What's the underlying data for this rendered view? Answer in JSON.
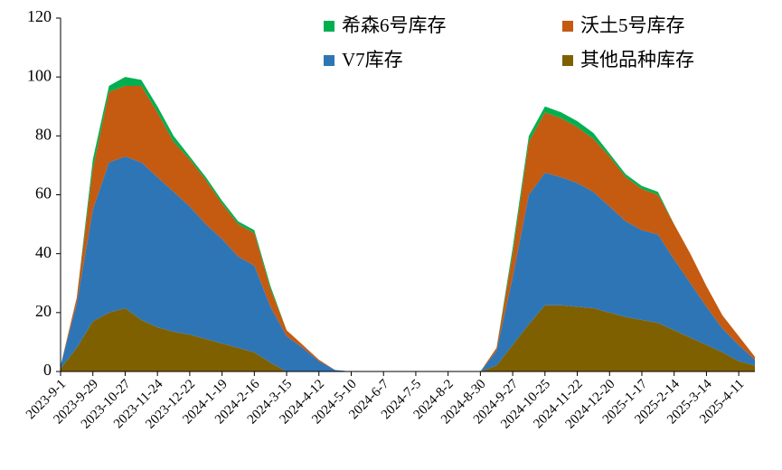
{
  "chart_data": {
    "type": "stacked_area",
    "categories": [
      "2023-9-1",
      null,
      "2023-9-29",
      null,
      "2023-10-27",
      null,
      "2023-11-24",
      null,
      "2023-12-22",
      null,
      "2024-1-19",
      null,
      "2024-2-16",
      null,
      "2024-3-15",
      null,
      "2024-4-12",
      null,
      "2024-5-10",
      null,
      "2024-6-7",
      null,
      "2024-7-5",
      null,
      "2024-8-2",
      null,
      "2024-8-30",
      null,
      "2024-9-27",
      null,
      "2024-10-25",
      null,
      "2024-11-22",
      null,
      "2024-12-20",
      null,
      "2025-1-17",
      null,
      "2025-2-14",
      null,
      "2025-3-14",
      null,
      "2025-4-11",
      null
    ],
    "series": [
      {
        "name": "希森6号库存",
        "color": "#00b050",
        "values": [
          0,
          0,
          3,
          2,
          3,
          2,
          2,
          2,
          1,
          1,
          1,
          1,
          1,
          1,
          0,
          0,
          0,
          0,
          0,
          0,
          0,
          0,
          0,
          0,
          0,
          0,
          0,
          0,
          2,
          2,
          2,
          2,
          2,
          2,
          1,
          1,
          1,
          1,
          0,
          0,
          0,
          0,
          0,
          0
        ]
      },
      {
        "name": "沃土5号库存",
        "color": "#c55a11",
        "values": [
          0,
          2,
          14,
          24,
          24,
          26,
          22,
          17,
          16,
          15,
          12,
          11,
          11,
          6,
          2,
          1,
          0.5,
          0,
          0,
          0,
          0,
          0,
          0,
          0,
          0,
          0,
          0,
          1,
          8,
          18,
          20.5,
          20,
          19,
          18,
          17,
          15,
          14,
          13.5,
          12,
          10,
          7,
          4.5,
          3,
          1
        ]
      },
      {
        "name": "V7库存",
        "color": "#2e75b6",
        "values": [
          1,
          15,
          38,
          51,
          51.5,
          53.5,
          51,
          47.5,
          43.5,
          39,
          35.5,
          31,
          29.5,
          19,
          12,
          8,
          3.5,
          0.5,
          0,
          0,
          0,
          0,
          0,
          0,
          0,
          0,
          0,
          5,
          23,
          44,
          45,
          43.5,
          42,
          39.5,
          36,
          32.5,
          30.5,
          30,
          24,
          18.5,
          13,
          8,
          5.5,
          2
        ]
      },
      {
        "name": "其他品种库存",
        "color": "#7f6000",
        "values": [
          1,
          8,
          17,
          20,
          21.5,
          17.5,
          15,
          13.5,
          12.5,
          11,
          9.5,
          8,
          6.5,
          3,
          0,
          0,
          0,
          0,
          0,
          0,
          0,
          0,
          0,
          0,
          0,
          0,
          0,
          2,
          9,
          16,
          22.5,
          22.5,
          22,
          21.5,
          20,
          18.5,
          17.5,
          16.5,
          14,
          11.5,
          9,
          6.5,
          3.5,
          2
        ]
      }
    ],
    "ylim": [
      0,
      120
    ],
    "yticks": [
      0,
      20,
      40,
      60,
      80,
      100,
      120
    ]
  }
}
